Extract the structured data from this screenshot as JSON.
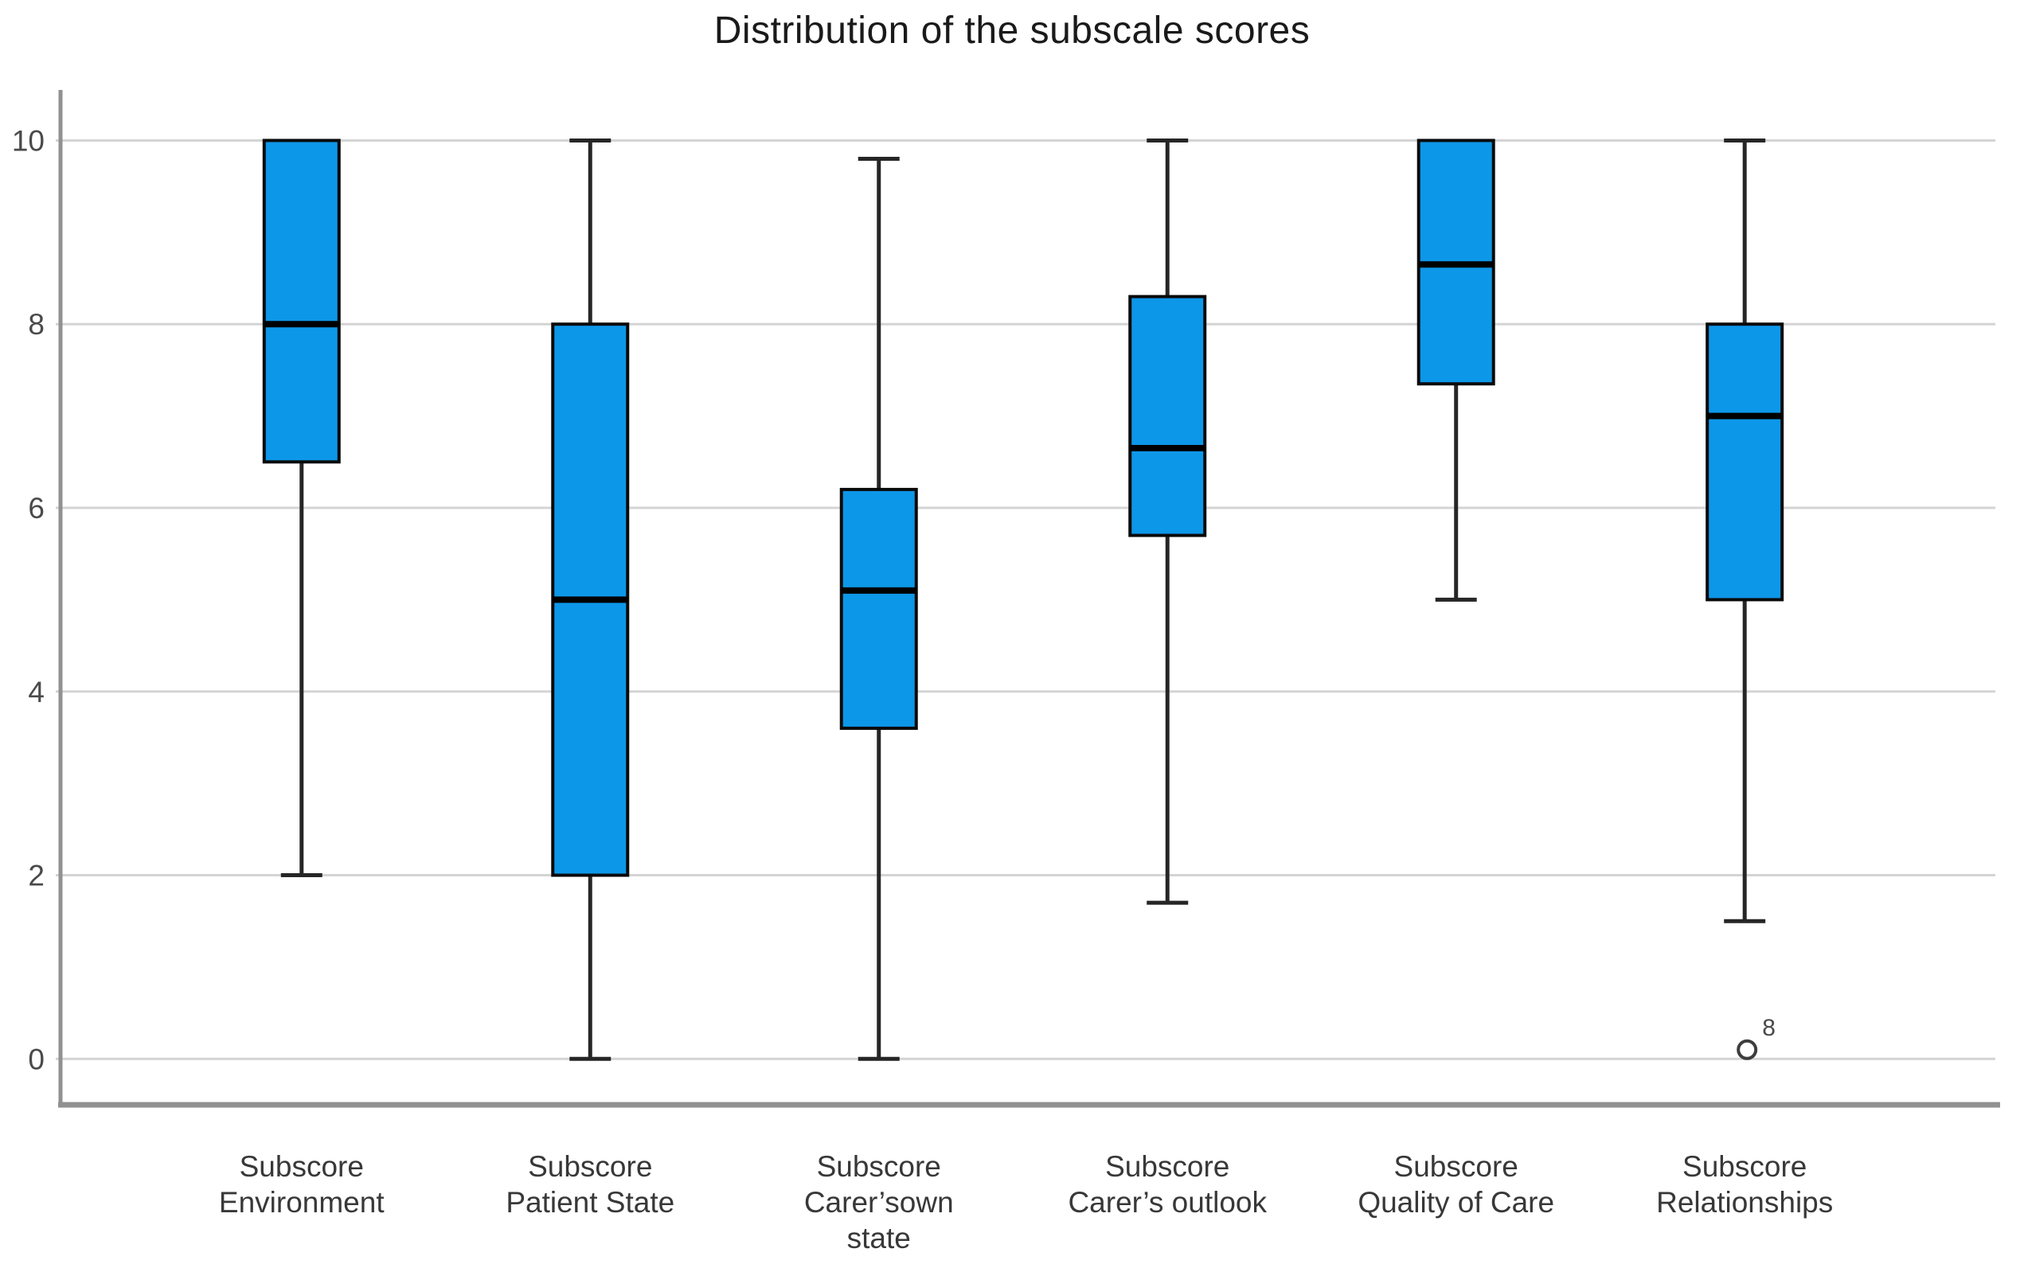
{
  "title": "Distribution of the subscale scores",
  "chart_data": {
    "type": "boxplot",
    "title": "Distribution of the subscale scores",
    "xlabel": "",
    "ylabel": "",
    "ylim": [
      -0.5,
      10.55
    ],
    "yticks": [
      0,
      2,
      4,
      6,
      8,
      10
    ],
    "grid": "horizontal",
    "legend": "none",
    "categories": [
      "Subscore Environment",
      "Subscore Patient State",
      "Subscore Carer’sown state",
      "Subscore Carer’s outlook",
      "Subscore Quality of Care",
      "Subscore Relationships"
    ],
    "category_label_lines": [
      [
        "Subscore",
        "Environment"
      ],
      [
        "Subscore",
        "Patient State"
      ],
      [
        "Subscore",
        "Carer’sown",
        "state"
      ],
      [
        "Subscore",
        "Carer’s outlook"
      ],
      [
        "Subscore",
        "Quality of Care"
      ],
      [
        "Subscore",
        "Relationships"
      ]
    ],
    "boxes": [
      {
        "category": "Subscore Environment",
        "whisker_low": 2,
        "q1": 6.5,
        "median": 8,
        "q3": 10,
        "whisker_high": 10,
        "outliers": []
      },
      {
        "category": "Subscore Patient State",
        "whisker_low": 0,
        "q1": 2,
        "median": 5,
        "q3": 8,
        "whisker_high": 10,
        "outliers": []
      },
      {
        "category": "Subscore Carer’sown state",
        "whisker_low": 0,
        "q1": 3.6,
        "median": 5.1,
        "q3": 6.2,
        "whisker_high": 9.8,
        "outliers": []
      },
      {
        "category": "Subscore Carer’s outlook",
        "whisker_low": 1.7,
        "q1": 5.7,
        "median": 6.65,
        "q3": 8.3,
        "whisker_high": 10,
        "outliers": []
      },
      {
        "category": "Subscore Quality of Care",
        "whisker_low": 5,
        "q1": 7.35,
        "median": 8.65,
        "q3": 10,
        "whisker_high": 10,
        "outliers": []
      },
      {
        "category": "Subscore Relationships",
        "whisker_low": 1.5,
        "q1": 5,
        "median": 7,
        "q3": 8,
        "whisker_high": 10,
        "outliers": [
          {
            "value": 0.1,
            "label": "8"
          }
        ]
      }
    ],
    "colors": {
      "box_fill": "#0d97e8",
      "box_border": "#0a0a0a",
      "median": "#000000",
      "whisker": "#262626",
      "gridline": "#d4d4d4",
      "axis": "#919191",
      "tick_text": "#4a4a4a",
      "category_text": "#383838",
      "title_text": "#1a1a1a",
      "outlier": "#3d3d3d"
    }
  }
}
